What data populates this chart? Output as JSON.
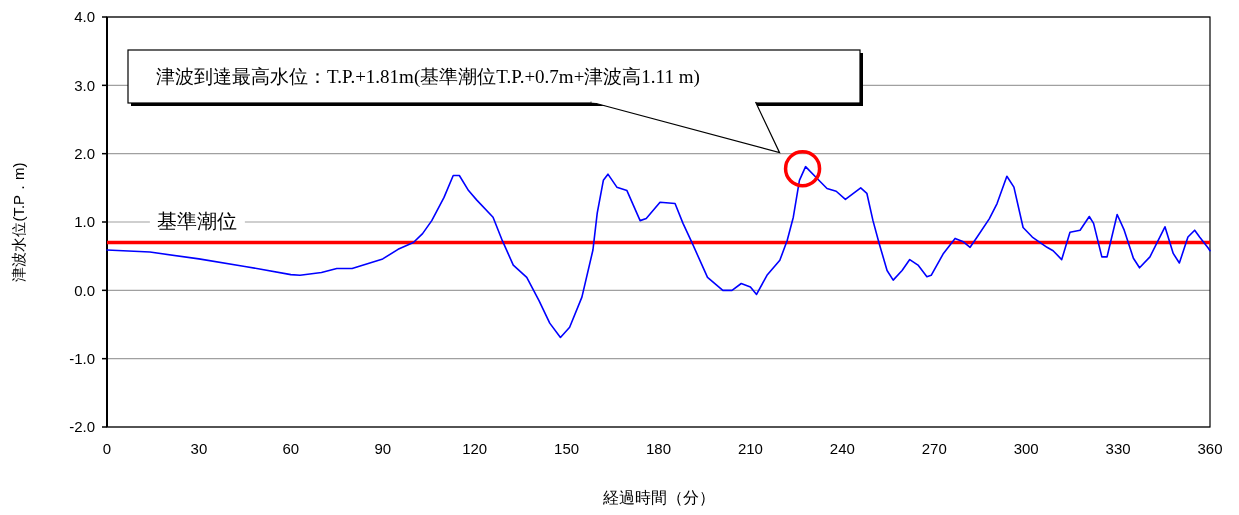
{
  "chart_data": {
    "type": "line",
    "xlabel": "経過時間（分）",
    "ylabel": "津波水位(T.P．m)",
    "x": [
      0,
      14,
      30,
      45,
      60,
      63,
      70,
      75,
      80,
      90,
      95,
      100,
      103,
      106,
      110,
      113,
      115,
      118,
      120.7,
      126,
      129,
      132.6,
      137,
      141,
      144.5,
      148,
      151,
      155,
      158.6,
      160,
      162,
      163.5,
      166.4,
      169.7,
      174,
      176,
      180.5,
      185.4,
      188,
      191,
      196,
      201,
      204,
      207,
      210,
      212,
      215.4,
      219.6,
      222,
      224,
      226,
      228,
      231.7,
      235,
      238,
      241,
      246,
      248,
      250,
      252,
      254.6,
      256.6,
      259.5,
      262,
      264.7,
      267.6,
      269,
      273,
      276.8,
      279.5,
      281.7,
      284,
      288,
      290.5,
      293.7,
      296,
      299,
      302,
      306.8,
      308.8,
      311.6,
      314.3,
      317.6,
      320.6,
      322,
      324.7,
      326.4,
      329.7,
      332,
      335,
      337,
      340.4,
      345.3,
      348,
      350,
      352.8,
      355,
      356.6,
      359.4,
      360
    ],
    "series": [
      {
        "color": "#0000ff",
        "values": [
          0.59,
          0.56,
          0.46,
          0.35,
          0.23,
          0.22,
          0.26,
          0.32,
          0.32,
          0.46,
          0.6,
          0.7,
          0.83,
          1.02,
          1.36,
          1.68,
          1.68,
          1.46,
          1.32,
          1.07,
          0.73,
          0.37,
          0.19,
          -0.15,
          -0.48,
          -0.69,
          -0.54,
          -0.1,
          0.59,
          1.13,
          1.61,
          1.7,
          1.51,
          1.46,
          1.02,
          1.05,
          1.29,
          1.27,
          0.98,
          0.69,
          0.19,
          0.0,
          0.0,
          0.1,
          0.05,
          -0.06,
          0.22,
          0.44,
          0.73,
          1.07,
          1.61,
          1.81,
          1.64,
          1.49,
          1.45,
          1.33,
          1.5,
          1.42,
          1.02,
          0.69,
          0.29,
          0.15,
          0.29,
          0.45,
          0.37,
          0.2,
          0.22,
          0.54,
          0.76,
          0.71,
          0.63,
          0.78,
          1.05,
          1.27,
          1.67,
          1.51,
          0.92,
          0.78,
          0.63,
          0.58,
          0.45,
          0.85,
          0.88,
          1.08,
          0.98,
          0.49,
          0.49,
          1.11,
          0.88,
          0.47,
          0.33,
          0.49,
          0.93,
          0.54,
          0.4,
          0.78,
          0.88,
          0.78,
          0.62,
          0.58
        ]
      }
    ],
    "xlim": [
      0,
      360
    ],
    "xticks": [
      0,
      30,
      60,
      90,
      120,
      150,
      180,
      210,
      240,
      270,
      300,
      330,
      360
    ],
    "ylim": [
      -2,
      4
    ],
    "yticks": [
      {
        "value": -2,
        "label": "-2.0"
      },
      {
        "value": -1,
        "label": "-1.0"
      },
      {
        "value": 0,
        "label": "0.0"
      },
      {
        "value": 1,
        "label": "1.0"
      },
      {
        "value": 2,
        "label": "2.0"
      },
      {
        "value": 3,
        "label": "3.0"
      },
      {
        "value": 4,
        "label": "4.0"
      }
    ],
    "grid": "y",
    "ref_lines": [
      {
        "axis": "y",
        "value": 0.7,
        "label": "基準潮位",
        "color": "#ff0000"
      }
    ],
    "annotations": [
      "津波到達最高水位：T.P.+1.81m(基準潮位T.P.+0.7m+津波高1.11 m)"
    ]
  }
}
